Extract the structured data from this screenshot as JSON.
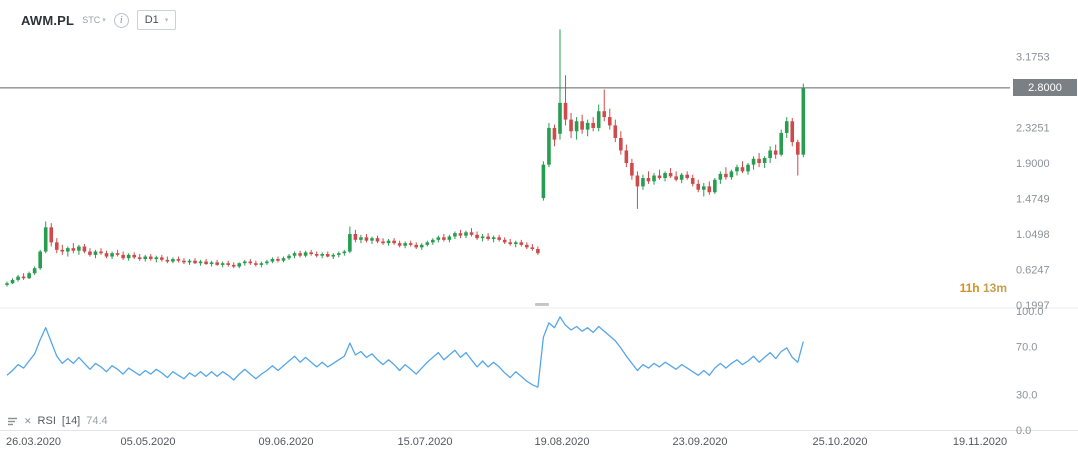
{
  "toolbar": {
    "symbol": "AWM.PL",
    "exchange": "STC",
    "timeframe": "D1",
    "info_glyph": "i"
  },
  "price_axis": {
    "current_price_label": "2.8000",
    "ticks": [
      {
        "label": "3.1753",
        "value": 3.1753
      },
      {
        "label": "2.3251",
        "value": 2.3251
      },
      {
        "label": "1.9000",
        "value": 1.9
      },
      {
        "label": "1.4749",
        "value": 1.4749
      },
      {
        "label": "1.0498",
        "value": 1.0498
      },
      {
        "label": "0.6247",
        "value": 0.6247
      },
      {
        "label": "0.1997",
        "value": 0.1997
      }
    ]
  },
  "rsi_axis": {
    "ticks": [
      {
        "label": "100.0",
        "value": 100
      },
      {
        "label": "70.0",
        "value": 70
      },
      {
        "label": "30.0",
        "value": 30
      },
      {
        "label": "0.0",
        "value": 0
      }
    ]
  },
  "time_axis": {
    "labels": [
      "26.03.2020",
      "05.05.2020",
      "09.06.2020",
      "15.07.2020",
      "19.08.2020",
      "23.09.2020",
      "25.10.2020",
      "19.11.2020"
    ]
  },
  "countdown": {
    "hours": "11h",
    "minutes": "13m"
  },
  "indicator_legend": {
    "name": "RSI",
    "period": "[14]",
    "value": "74.4",
    "remove_glyph": "✕"
  },
  "colors": {
    "up": "#279d50",
    "down": "#cf4a4a",
    "rsi_line": "#55a7e8",
    "price_line": "#60656a",
    "badge_bg": "#7b8085",
    "axis_text": "#8d9298",
    "date_text": "#53575c",
    "countdown_hours": "#d98f1f",
    "countdown_minutes": "#c2a04e",
    "divider": "#ececec"
  },
  "chart_data": [
    {
      "type": "candlestick",
      "title": "AWM.PL D1 price",
      "ylim": [
        0.1997,
        3.1753
      ],
      "current_price": 2.8,
      "x_range": [
        "26.03.2020",
        "19.11.2020"
      ],
      "candles": [
        [
          0.44,
          0.48,
          0.42,
          0.46
        ],
        [
          0.46,
          0.52,
          0.45,
          0.5
        ],
        [
          0.5,
          0.56,
          0.48,
          0.54
        ],
        [
          0.54,
          0.58,
          0.5,
          0.52
        ],
        [
          0.52,
          0.6,
          0.51,
          0.58
        ],
        [
          0.58,
          0.66,
          0.56,
          0.64
        ],
        [
          0.64,
          0.86,
          0.62,
          0.84
        ],
        [
          0.84,
          1.2,
          0.82,
          1.13
        ],
        [
          1.13,
          1.18,
          0.9,
          0.95
        ],
        [
          0.95,
          1.0,
          0.82,
          0.86
        ],
        [
          0.86,
          0.92,
          0.8,
          0.84
        ],
        [
          0.84,
          0.9,
          0.78,
          0.88
        ],
        [
          0.88,
          0.94,
          0.82,
          0.85
        ],
        [
          0.85,
          0.92,
          0.8,
          0.9
        ],
        [
          0.9,
          0.93,
          0.82,
          0.84
        ],
        [
          0.84,
          0.88,
          0.78,
          0.8
        ],
        [
          0.8,
          0.86,
          0.76,
          0.84
        ],
        [
          0.84,
          0.88,
          0.8,
          0.82
        ],
        [
          0.82,
          0.85,
          0.76,
          0.78
        ],
        [
          0.78,
          0.84,
          0.75,
          0.82
        ],
        [
          0.82,
          0.86,
          0.78,
          0.8
        ],
        [
          0.8,
          0.84,
          0.74,
          0.76
        ],
        [
          0.76,
          0.82,
          0.73,
          0.8
        ],
        [
          0.8,
          0.83,
          0.75,
          0.77
        ],
        [
          0.77,
          0.81,
          0.73,
          0.75
        ],
        [
          0.75,
          0.8,
          0.72,
          0.78
        ],
        [
          0.78,
          0.81,
          0.73,
          0.75
        ],
        [
          0.75,
          0.79,
          0.71,
          0.77
        ],
        [
          0.77,
          0.8,
          0.72,
          0.74
        ],
        [
          0.74,
          0.78,
          0.7,
          0.72
        ],
        [
          0.72,
          0.77,
          0.7,
          0.75
        ],
        [
          0.75,
          0.78,
          0.71,
          0.73
        ],
        [
          0.73,
          0.76,
          0.69,
          0.71
        ],
        [
          0.71,
          0.75,
          0.68,
          0.73
        ],
        [
          0.73,
          0.76,
          0.69,
          0.7
        ],
        [
          0.7,
          0.74,
          0.67,
          0.72
        ],
        [
          0.72,
          0.75,
          0.68,
          0.69
        ],
        [
          0.69,
          0.73,
          0.66,
          0.71
        ],
        [
          0.71,
          0.74,
          0.67,
          0.68
        ],
        [
          0.68,
          0.72,
          0.65,
          0.7
        ],
        [
          0.7,
          0.73,
          0.66,
          0.68
        ],
        [
          0.68,
          0.71,
          0.64,
          0.66
        ],
        [
          0.66,
          0.71,
          0.64,
          0.7
        ],
        [
          0.7,
          0.74,
          0.67,
          0.72
        ],
        [
          0.72,
          0.75,
          0.68,
          0.7
        ],
        [
          0.7,
          0.73,
          0.66,
          0.68
        ],
        [
          0.68,
          0.72,
          0.65,
          0.7
        ],
        [
          0.7,
          0.74,
          0.68,
          0.72
        ],
        [
          0.72,
          0.77,
          0.7,
          0.75
        ],
        [
          0.75,
          0.78,
          0.71,
          0.73
        ],
        [
          0.73,
          0.78,
          0.71,
          0.76
        ],
        [
          0.76,
          0.81,
          0.74,
          0.79
        ],
        [
          0.79,
          0.84,
          0.76,
          0.82
        ],
        [
          0.82,
          0.85,
          0.77,
          0.79
        ],
        [
          0.79,
          0.85,
          0.77,
          0.83
        ],
        [
          0.83,
          0.86,
          0.79,
          0.81
        ],
        [
          0.81,
          0.84,
          0.77,
          0.79
        ],
        [
          0.79,
          0.83,
          0.76,
          0.81
        ],
        [
          0.81,
          0.84,
          0.77,
          0.78
        ],
        [
          0.78,
          0.82,
          0.75,
          0.8
        ],
        [
          0.8,
          0.84,
          0.77,
          0.82
        ],
        [
          0.82,
          0.86,
          0.79,
          0.84
        ],
        [
          0.84,
          1.14,
          0.82,
          1.05
        ],
        [
          1.05,
          1.1,
          0.95,
          0.98
        ],
        [
          0.98,
          1.04,
          0.94,
          1.01
        ],
        [
          1.01,
          1.05,
          0.95,
          0.97
        ],
        [
          0.97,
          1.02,
          0.93,
          1.0
        ],
        [
          1.0,
          1.03,
          0.94,
          0.96
        ],
        [
          0.96,
          1.0,
          0.92,
          0.94
        ],
        [
          0.94,
          0.99,
          0.91,
          0.97
        ],
        [
          0.97,
          1.0,
          0.92,
          0.94
        ],
        [
          0.94,
          0.97,
          0.89,
          0.91
        ],
        [
          0.91,
          0.96,
          0.88,
          0.94
        ],
        [
          0.94,
          0.97,
          0.9,
          0.92
        ],
        [
          0.92,
          0.95,
          0.87,
          0.89
        ],
        [
          0.89,
          0.94,
          0.86,
          0.92
        ],
        [
          0.92,
          0.97,
          0.9,
          0.95
        ],
        [
          0.95,
          1.0,
          0.92,
          0.98
        ],
        [
          0.98,
          1.03,
          0.95,
          1.01
        ],
        [
          1.01,
          1.05,
          0.96,
          0.98
        ],
        [
          0.98,
          1.04,
          0.95,
          1.02
        ],
        [
          1.02,
          1.08,
          0.99,
          1.06
        ],
        [
          1.06,
          1.1,
          1.0,
          1.03
        ],
        [
          1.03,
          1.09,
          1.0,
          1.07
        ],
        [
          1.07,
          1.12,
          1.02,
          1.04
        ],
        [
          1.04,
          1.08,
          0.98,
          1.0
        ],
        [
          1.0,
          1.05,
          0.96,
          1.02
        ],
        [
          1.02,
          1.06,
          0.97,
          0.99
        ],
        [
          0.99,
          1.03,
          0.95,
          1.01
        ],
        [
          1.01,
          1.04,
          0.96,
          0.98
        ],
        [
          0.98,
          1.01,
          0.93,
          0.95
        ],
        [
          0.95,
          0.99,
          0.91,
          0.93
        ],
        [
          0.93,
          0.97,
          0.89,
          0.95
        ],
        [
          0.95,
          0.98,
          0.9,
          0.92
        ],
        [
          0.92,
          0.95,
          0.87,
          0.89
        ],
        [
          0.89,
          0.93,
          0.85,
          0.87
        ],
        [
          0.87,
          0.9,
          0.8,
          0.82
        ],
        [
          1.48,
          1.92,
          1.45,
          1.88
        ],
        [
          1.88,
          2.38,
          1.85,
          2.32
        ],
        [
          2.32,
          2.36,
          2.1,
          2.18
        ],
        [
          2.25,
          3.5,
          2.18,
          2.62
        ],
        [
          2.62,
          2.95,
          2.35,
          2.42
        ],
        [
          2.42,
          2.5,
          2.2,
          2.28
        ],
        [
          2.28,
          2.45,
          2.18,
          2.4
        ],
        [
          2.4,
          2.48,
          2.25,
          2.3
        ],
        [
          2.3,
          2.42,
          2.22,
          2.38
        ],
        [
          2.38,
          2.45,
          2.28,
          2.32
        ],
        [
          2.32,
          2.6,
          2.28,
          2.52
        ],
        [
          2.52,
          2.78,
          2.4,
          2.45
        ],
        [
          2.45,
          2.55,
          2.3,
          2.35
        ],
        [
          2.35,
          2.42,
          2.15,
          2.2
        ],
        [
          2.2,
          2.28,
          2.0,
          2.05
        ],
        [
          2.05,
          2.12,
          1.85,
          1.9
        ],
        [
          1.9,
          1.95,
          1.7,
          1.75
        ],
        [
          1.75,
          1.8,
          1.35,
          1.62
        ],
        [
          1.62,
          1.76,
          1.58,
          1.72
        ],
        [
          1.72,
          1.8,
          1.65,
          1.68
        ],
        [
          1.68,
          1.78,
          1.64,
          1.75
        ],
        [
          1.75,
          1.82,
          1.7,
          1.72
        ],
        [
          1.72,
          1.8,
          1.68,
          1.78
        ],
        [
          1.78,
          1.84,
          1.72,
          1.74
        ],
        [
          1.74,
          1.8,
          1.68,
          1.7
        ],
        [
          1.7,
          1.78,
          1.66,
          1.76
        ],
        [
          1.76,
          1.8,
          1.7,
          1.72
        ],
        [
          1.72,
          1.76,
          1.62,
          1.65
        ],
        [
          1.65,
          1.7,
          1.55,
          1.58
        ],
        [
          1.58,
          1.66,
          1.5,
          1.62
        ],
        [
          1.62,
          1.68,
          1.52,
          1.55
        ],
        [
          1.55,
          1.72,
          1.53,
          1.7
        ],
        [
          1.7,
          1.8,
          1.65,
          1.77
        ],
        [
          1.77,
          1.85,
          1.7,
          1.73
        ],
        [
          1.73,
          1.82,
          1.7,
          1.8
        ],
        [
          1.8,
          1.88,
          1.75,
          1.85
        ],
        [
          1.85,
          1.92,
          1.78,
          1.8
        ],
        [
          1.8,
          1.9,
          1.76,
          1.88
        ],
        [
          1.88,
          1.98,
          1.82,
          1.95
        ],
        [
          1.95,
          2.02,
          1.85,
          1.9
        ],
        [
          1.9,
          1.98,
          1.84,
          1.96
        ],
        [
          1.96,
          2.1,
          1.9,
          2.05
        ],
        [
          2.05,
          2.12,
          1.95,
          2.0
        ],
        [
          2.0,
          2.3,
          1.98,
          2.26
        ],
        [
          2.26,
          2.45,
          2.2,
          2.4
        ],
        [
          2.4,
          2.44,
          2.1,
          2.15
        ],
        [
          2.15,
          2.18,
          1.75,
          2.0
        ],
        [
          2.0,
          2.85,
          1.97,
          2.8
        ]
      ]
    },
    {
      "type": "line",
      "title": "RSI [14]",
      "ylim": [
        0,
        100
      ],
      "last_value": 74.4,
      "values": [
        46,
        50,
        55,
        52,
        58,
        64,
        76,
        86,
        74,
        62,
        56,
        60,
        56,
        61,
        56,
        51,
        56,
        53,
        49,
        54,
        51,
        47,
        52,
        49,
        46,
        50,
        47,
        51,
        48,
        44,
        49,
        46,
        43,
        48,
        45,
        49,
        45,
        49,
        45,
        49,
        46,
        42,
        47,
        51,
        47,
        43,
        47,
        50,
        54,
        50,
        54,
        58,
        62,
        57,
        61,
        57,
        53,
        57,
        53,
        56,
        59,
        62,
        73,
        63,
        66,
        61,
        64,
        59,
        55,
        59,
        55,
        50,
        55,
        51,
        47,
        52,
        57,
        61,
        65,
        59,
        63,
        67,
        61,
        65,
        59,
        53,
        58,
        53,
        57,
        53,
        48,
        44,
        49,
        45,
        41,
        38,
        36,
        78,
        90,
        86,
        95,
        88,
        84,
        87,
        83,
        86,
        82,
        87,
        83,
        79,
        75,
        69,
        62,
        56,
        50,
        55,
        52,
        56,
        53,
        57,
        54,
        51,
        55,
        52,
        49,
        46,
        50,
        46,
        52,
        56,
        52,
        56,
        59,
        55,
        58,
        62,
        57,
        61,
        65,
        60,
        66,
        69,
        61,
        57,
        74.4
      ]
    }
  ]
}
